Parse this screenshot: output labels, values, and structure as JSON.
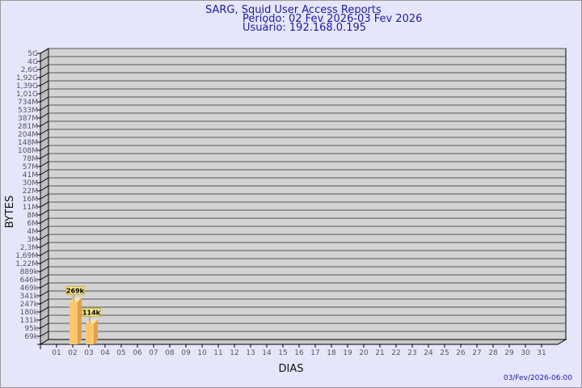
{
  "title": "SARG, Squid User Access Reports",
  "period": "Período: 02 Fev 2026-03 Fev 2026",
  "user": "Usuário: 192.168.0.195",
  "footer": "03/Fev/2026-06:00",
  "colors": {
    "background": "#e6e6fa",
    "plot": "#d3d3d3",
    "bar": "#ffc66a",
    "title": "#1a1aa6"
  },
  "chart_data": {
    "type": "bar",
    "xlabel": "DIAS",
    "ylabel": "BYTES",
    "y_scale": "log",
    "grid": true,
    "y_ticks": [
      "5G",
      "4G",
      "2,6G",
      "1,92G",
      "1,39G",
      "1,01G",
      "734M",
      "533M",
      "387M",
      "281M",
      "204M",
      "148M",
      "108M",
      "78M",
      "57M",
      "41M",
      "30M",
      "22M",
      "16M",
      "11M",
      "8M",
      "6M",
      "4M",
      "3M",
      "2,3M",
      "1,69M",
      "1,22M",
      "889k",
      "646k",
      "469k",
      "341k",
      "247k",
      "180k",
      "131k",
      "95k",
      "69k"
    ],
    "y_tick_values": [
      5000000000.0,
      4000000000.0,
      2600000000.0,
      1920000000.0,
      1390000000.0,
      1010000000.0,
      734000000.0,
      533000000.0,
      387000000.0,
      281000000.0,
      204000000.0,
      148000000.0,
      108000000.0,
      78000000.0,
      57000000.0,
      41000000.0,
      30000000.0,
      22000000.0,
      16000000.0,
      11000000.0,
      8000000.0,
      6000000.0,
      4000000.0,
      3000000.0,
      2300000.0,
      1690000.0,
      1220000.0,
      889000.0,
      646000.0,
      469000.0,
      341000.0,
      247000.0,
      180000.0,
      131000.0,
      95000.0,
      69000.0
    ],
    "categories": [
      "01",
      "02",
      "03",
      "04",
      "05",
      "06",
      "07",
      "08",
      "09",
      "10",
      "11",
      "12",
      "13",
      "14",
      "15",
      "16",
      "17",
      "18",
      "19",
      "20",
      "21",
      "22",
      "23",
      "24",
      "25",
      "26",
      "27",
      "28",
      "29",
      "30",
      "31"
    ],
    "values": [
      null,
      269000,
      114000,
      null,
      null,
      null,
      null,
      null,
      null,
      null,
      null,
      null,
      null,
      null,
      null,
      null,
      null,
      null,
      null,
      null,
      null,
      null,
      null,
      null,
      null,
      null,
      null,
      null,
      null,
      null,
      null
    ],
    "data_labels": [
      null,
      "269k",
      "114k",
      null,
      null,
      null,
      null,
      null,
      null,
      null,
      null,
      null,
      null,
      null,
      null,
      null,
      null,
      null,
      null,
      null,
      null,
      null,
      null,
      null,
      null,
      null,
      null,
      null,
      null,
      null,
      null
    ]
  }
}
